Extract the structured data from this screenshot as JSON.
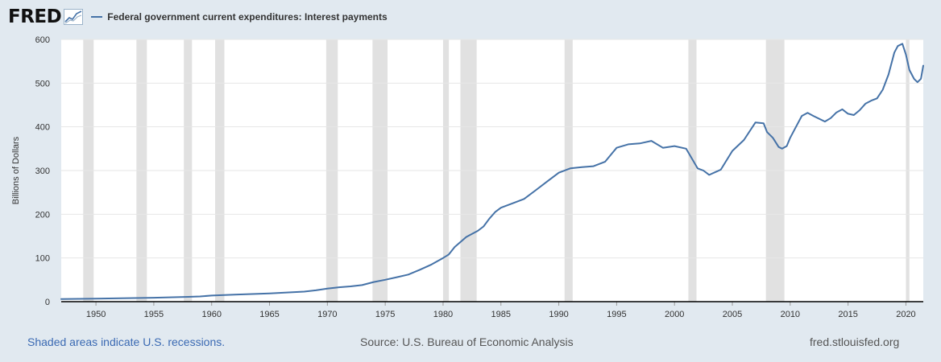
{
  "header": {
    "logo": "FRED",
    "series_label": "Federal government current expenditures: Interest payments"
  },
  "footer": {
    "note": "Shaded areas indicate U.S. recessions.",
    "source": "Source: U.S. Bureau of Economic Analysis",
    "site": "fred.stlouisfed.org"
  },
  "colors": {
    "background": "#e1e9f0",
    "plot": "#ffffff",
    "line": "#4572a7",
    "recession": "#e1e1e1"
  },
  "chart_data": {
    "type": "line",
    "title": "",
    "ylabel": "Billions of Dollars",
    "xlim": [
      1947,
      2021.5
    ],
    "ylim": [
      0,
      600
    ],
    "yticks": [
      0,
      100,
      200,
      300,
      400,
      500,
      600
    ],
    "xticks": [
      1950,
      1955,
      1960,
      1965,
      1970,
      1975,
      1980,
      1985,
      1990,
      1995,
      2000,
      2005,
      2010,
      2015,
      2020
    ],
    "grid": true,
    "recessions": [
      [
        1948.9,
        1949.8
      ],
      [
        1953.5,
        1954.4
      ],
      [
        1957.6,
        1958.3
      ],
      [
        1960.3,
        1961.1
      ],
      [
        1969.9,
        1970.9
      ],
      [
        1973.9,
        1975.2
      ],
      [
        1980.0,
        1980.5
      ],
      [
        1981.5,
        1982.9
      ],
      [
        1990.5,
        1991.2
      ],
      [
        2001.2,
        2001.9
      ],
      [
        2007.9,
        2009.5
      ],
      [
        2020.0,
        2020.3
      ]
    ],
    "series": [
      {
        "name": "Federal government current expenditures: Interest payments",
        "x": [
          1947,
          1950,
          1955,
          1958,
          1959,
          1960,
          1962,
          1965,
          1968,
          1969,
          1970,
          1971,
          1972,
          1973,
          1974,
          1975,
          1976,
          1977,
          1978,
          1979,
          1980,
          1980.5,
          1981,
          1982,
          1982.5,
          1983,
          1983.5,
          1984,
          1984.5,
          1985,
          1986,
          1987,
          1988,
          1989,
          1990,
          1991,
          1992,
          1993,
          1994,
          1995,
          1996,
          1997,
          1998,
          1999,
          2000,
          2001,
          2002,
          2002.5,
          2003,
          2004,
          2005,
          2006,
          2007,
          2007.7,
          2008,
          2008.5,
          2009,
          2009.3,
          2009.7,
          2010,
          2010.5,
          2011,
          2011.5,
          2012,
          2013,
          2013.5,
          2014,
          2014.5,
          2015,
          2015.5,
          2016,
          2016.5,
          2017,
          2017.5,
          2018,
          2018.5,
          2019,
          2019.3,
          2019.7,
          2020,
          2020.3,
          2020.7,
          2021,
          2021.3,
          2021.5
        ],
        "y": [
          6,
          7,
          9,
          11,
          12,
          14,
          16,
          19,
          23,
          26,
          30,
          33,
          35,
          38,
          45,
          50,
          56,
          62,
          73,
          85,
          100,
          108,
          125,
          148,
          155,
          162,
          172,
          190,
          205,
          215,
          225,
          235,
          255,
          275,
          295,
          305,
          308,
          310,
          320,
          352,
          360,
          362,
          368,
          352,
          356,
          350,
          305,
          300,
          290,
          302,
          345,
          370,
          410,
          408,
          388,
          375,
          354,
          350,
          356,
          375,
          400,
          425,
          432,
          425,
          412,
          420,
          433,
          440,
          430,
          427,
          438,
          453,
          460,
          465,
          485,
          520,
          570,
          585,
          590,
          565,
          530,
          510,
          502,
          510,
          540
        ]
      }
    ]
  }
}
